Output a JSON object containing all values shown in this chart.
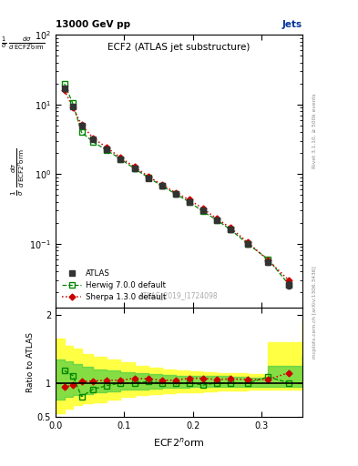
{
  "title_main": "ECF2 (ATLAS jet substructure)",
  "header_left": "13000 GeV pp",
  "header_right": "Jets",
  "watermark": "ATLAS_2019_I1724098",
  "right_label_top": "Rivet 3.1.10, ≥ 500k events",
  "right_label_bot": "mcplots.cern.ch [arXiv:1306.3436]",
  "xlabel": "ECF2⁺orm",
  "ylabel_ratio": "Ratio to ATLAS",
  "atlas_x": [
    0.013,
    0.025,
    0.038,
    0.055,
    0.075,
    0.095,
    0.115,
    0.135,
    0.155,
    0.175,
    0.195,
    0.215,
    0.235,
    0.255,
    0.28,
    0.31,
    0.34
  ],
  "atlas_y": [
    17.0,
    9.5,
    5.0,
    3.2,
    2.3,
    1.65,
    1.2,
    0.88,
    0.68,
    0.52,
    0.4,
    0.3,
    0.22,
    0.16,
    0.1,
    0.055,
    0.026
  ],
  "atlas_yerr": [
    1.2,
    0.6,
    0.3,
    0.2,
    0.14,
    0.1,
    0.08,
    0.06,
    0.05,
    0.04,
    0.03,
    0.022,
    0.016,
    0.012,
    0.008,
    0.005,
    0.003
  ],
  "herwig_x": [
    0.013,
    0.025,
    0.038,
    0.055,
    0.075,
    0.095,
    0.115,
    0.135,
    0.155,
    0.175,
    0.195,
    0.215,
    0.235,
    0.255,
    0.28,
    0.31,
    0.34
  ],
  "herwig_y": [
    20.0,
    10.5,
    4.0,
    2.9,
    2.2,
    1.65,
    1.2,
    0.9,
    0.68,
    0.52,
    0.4,
    0.29,
    0.22,
    0.16,
    0.1,
    0.06,
    0.026
  ],
  "sherpa_x": [
    0.013,
    0.025,
    0.038,
    0.055,
    0.075,
    0.095,
    0.115,
    0.135,
    0.155,
    0.175,
    0.195,
    0.215,
    0.235,
    0.255,
    0.28,
    0.31,
    0.34
  ],
  "sherpa_y": [
    16.0,
    9.2,
    5.1,
    3.3,
    2.4,
    1.72,
    1.28,
    0.93,
    0.71,
    0.54,
    0.43,
    0.32,
    0.23,
    0.17,
    0.105,
    0.058,
    0.03
  ],
  "herwig_ratio": [
    1.18,
    1.11,
    0.8,
    0.91,
    0.96,
    1.0,
    1.0,
    1.02,
    1.0,
    1.0,
    1.0,
    0.97,
    1.0,
    1.0,
    1.0,
    1.09,
    1.0
  ],
  "sherpa_ratio": [
    0.94,
    0.97,
    1.02,
    1.03,
    1.04,
    1.04,
    1.07,
    1.06,
    1.04,
    1.04,
    1.07,
    1.07,
    1.05,
    1.06,
    1.05,
    1.05,
    1.15
  ],
  "yellow_band_x": [
    0.0,
    0.013,
    0.025,
    0.038,
    0.055,
    0.075,
    0.095,
    0.115,
    0.135,
    0.155,
    0.175,
    0.195,
    0.215,
    0.235,
    0.255,
    0.28,
    0.31,
    0.36
  ],
  "yellow_band_lo": [
    0.55,
    0.62,
    0.68,
    0.7,
    0.72,
    0.76,
    0.8,
    0.82,
    0.84,
    0.85,
    0.86,
    0.87,
    0.88,
    0.89,
    0.89,
    0.9,
    0.9,
    0.9
  ],
  "yellow_band_hi": [
    1.65,
    1.55,
    1.5,
    1.42,
    1.38,
    1.35,
    1.3,
    1.25,
    1.22,
    1.2,
    1.18,
    1.17,
    1.16,
    1.15,
    1.14,
    1.13,
    1.6,
    1.9
  ],
  "green_band_x": [
    0.0,
    0.013,
    0.025,
    0.038,
    0.055,
    0.075,
    0.095,
    0.115,
    0.135,
    0.155,
    0.175,
    0.195,
    0.215,
    0.235,
    0.255,
    0.28,
    0.31,
    0.36
  ],
  "green_band_lo": [
    0.75,
    0.8,
    0.82,
    0.84,
    0.86,
    0.88,
    0.9,
    0.91,
    0.92,
    0.93,
    0.93,
    0.94,
    0.94,
    0.94,
    0.95,
    0.95,
    0.95,
    0.95
  ],
  "green_band_hi": [
    1.35,
    1.32,
    1.28,
    1.24,
    1.2,
    1.18,
    1.16,
    1.14,
    1.13,
    1.12,
    1.11,
    1.11,
    1.1,
    1.1,
    1.09,
    1.08,
    1.25,
    1.4
  ],
  "color_atlas": "#333333",
  "color_herwig": "#008800",
  "color_sherpa": "#cc0000",
  "color_yellow": "#ffff44",
  "color_green": "#44cc44",
  "xlim": [
    0.0,
    0.36
  ],
  "ylim_main_lo": 0.012,
  "ylim_main_hi": 100.0,
  "ylim_ratio": [
    0.5,
    2.1
  ],
  "yticks_ratio": [
    0.5,
    1.0,
    2.0
  ],
  "yticklabels_ratio": [
    "0.5",
    "1",
    "2"
  ],
  "xticks": [
    0.0,
    0.1,
    0.2,
    0.3
  ]
}
